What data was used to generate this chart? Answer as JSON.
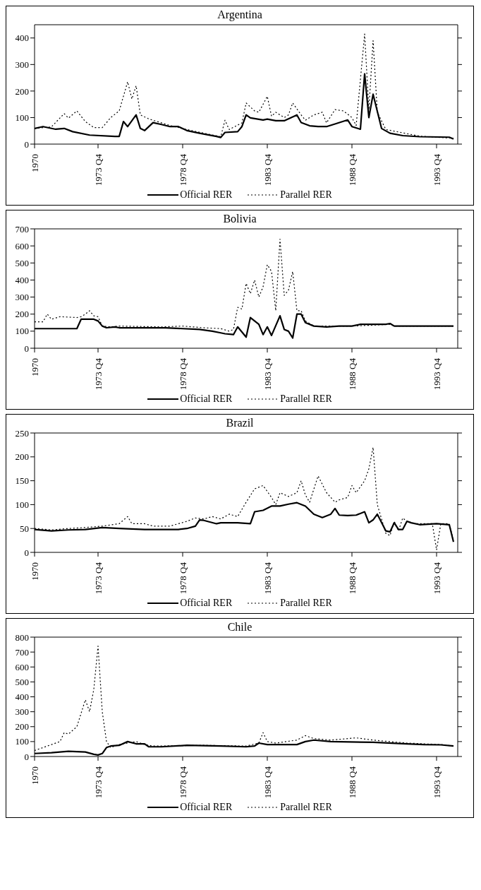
{
  "chart_data": [
    {
      "type": "line",
      "title": "Argentina",
      "xlim": [
        "1970-01",
        "1995-01"
      ],
      "xticks": [
        {
          "value": "1970-01",
          "label": "1970"
        },
        {
          "value": "1973-10",
          "label": "1973 Q4"
        },
        {
          "value": "1978-10",
          "label": "1978 Q4"
        },
        {
          "value": "1983-10",
          "label": "1983 Q4"
        },
        {
          "value": "1988-10",
          "label": "1988 Q4"
        },
        {
          "value": "1993-10",
          "label": "1993 Q4"
        }
      ],
      "ylim": [
        0,
        450
      ],
      "yticks": [
        0,
        100,
        200,
        300,
        400
      ],
      "legend": "bottom",
      "series": [
        {
          "name": "Official RER",
          "color": "#000000",
          "line_style": "solid",
          "x": [
            "1970-01",
            "1970-07",
            "1971-04",
            "1971-10",
            "1972-04",
            "1973-04",
            "1974-10",
            "1975-01",
            "1975-04",
            "1975-07",
            "1976-01",
            "1976-04",
            "1976-07",
            "1977-01",
            "1977-07",
            "1978-01",
            "1978-07",
            "1979-01",
            "1979-10",
            "1980-10",
            "1981-01",
            "1981-04",
            "1982-01",
            "1982-04",
            "1982-07",
            "1982-10",
            "1983-07",
            "1983-10",
            "1984-04",
            "1984-10",
            "1985-07",
            "1985-10",
            "1986-04",
            "1986-10",
            "1987-04",
            "1987-10",
            "1988-07",
            "1988-10",
            "1989-04",
            "1989-07",
            "1989-10",
            "1990-01",
            "1990-07",
            "1991-01",
            "1991-10",
            "1992-10",
            "1994-07",
            "1994-10"
          ],
          "values": [
            59,
            66,
            56,
            59,
            47,
            34,
            29,
            29,
            85,
            66,
            110,
            59,
            51,
            81,
            74,
            66,
            66,
            51,
            41,
            29,
            25,
            44,
            47,
            66,
            110,
            99,
            91,
            94,
            88,
            88,
            110,
            81,
            69,
            66,
            66,
            76,
            91,
            66,
            56,
            265,
            100,
            188,
            59,
            41,
            32,
            28,
            26,
            19
          ]
        },
        {
          "name": "Parallel RER",
          "color": "#000000",
          "line_style": "dotted",
          "x": [
            "1970-01",
            "1971-01",
            "1971-10",
            "1972-01",
            "1972-07",
            "1973-01",
            "1973-07",
            "1974-01",
            "1974-07",
            "1975-01",
            "1975-07",
            "1975-10",
            "1976-01",
            "1976-04",
            "1976-10",
            "1978-01",
            "1979-01",
            "1980-01",
            "1981-01",
            "1981-04",
            "1981-07",
            "1982-04",
            "1982-07",
            "1983-01",
            "1983-04",
            "1983-10",
            "1984-01",
            "1984-04",
            "1984-10",
            "1985-01",
            "1985-04",
            "1985-10",
            "1986-01",
            "1986-07",
            "1987-01",
            "1987-04",
            "1987-10",
            "1988-04",
            "1988-10",
            "1989-01",
            "1989-07",
            "1989-10",
            "1990-01",
            "1990-04",
            "1990-10",
            "1992-10",
            "1994-10"
          ],
          "values": [
            59,
            65,
            115,
            98,
            125,
            85,
            62,
            62,
            100,
            125,
            235,
            170,
            220,
            110,
            95,
            70,
            55,
            41,
            28,
            90,
            55,
            80,
            155,
            125,
            120,
            180,
            105,
            120,
            100,
            110,
            155,
            110,
            90,
            110,
            120,
            80,
            130,
            125,
            100,
            70,
            415,
            130,
            390,
            120,
            55,
            30,
            22
          ]
        }
      ]
    },
    {
      "type": "line",
      "title": "Bolivia",
      "xlim": [
        "1970-01",
        "1995-01"
      ],
      "xticks": [
        {
          "value": "1970-01",
          "label": "1970"
        },
        {
          "value": "1973-10",
          "label": "1973 Q4"
        },
        {
          "value": "1978-10",
          "label": "1978 Q4"
        },
        {
          "value": "1983-10",
          "label": "1983 Q4"
        },
        {
          "value": "1988-10",
          "label": "1988 Q4"
        },
        {
          "value": "1993-10",
          "label": "1993 Q4"
        }
      ],
      "ylim": [
        0,
        700
      ],
      "yticks": [
        0,
        100,
        200,
        300,
        400,
        500,
        600,
        700
      ],
      "legend": "bottom",
      "series": [
        {
          "name": "Official RER",
          "color": "#000000",
          "line_style": "solid",
          "x": [
            "1970-01",
            "1972-07",
            "1972-10",
            "1973-07",
            "1973-10",
            "1974-01",
            "1974-04",
            "1974-10",
            "1975-01",
            "1977-10",
            "1979-10",
            "1980-07",
            "1981-01",
            "1981-04",
            "1981-10",
            "1982-01",
            "1982-07",
            "1982-10",
            "1983-04",
            "1983-07",
            "1983-10",
            "1984-01",
            "1984-07",
            "1984-10",
            "1985-01",
            "1985-04",
            "1985-07",
            "1985-10",
            "1986-01",
            "1986-07",
            "1987-04",
            "1988-01",
            "1988-10",
            "1989-04",
            "1990-10",
            "1991-01",
            "1991-04",
            "1993-01",
            "1994-10"
          ],
          "values": [
            115,
            115,
            170,
            170,
            160,
            130,
            120,
            125,
            120,
            120,
            110,
            100,
            90,
            85,
            80,
            125,
            65,
            180,
            140,
            80,
            125,
            75,
            190,
            110,
            100,
            60,
            200,
            200,
            150,
            130,
            125,
            130,
            130,
            140,
            140,
            145,
            130,
            130,
            130
          ]
        },
        {
          "name": "Parallel RER",
          "color": "#000000",
          "line_style": "dotted",
          "x": [
            "1970-01",
            "1970-07",
            "1970-10",
            "1971-01",
            "1971-07",
            "1972-07",
            "1972-10",
            "1973-01",
            "1973-04",
            "1973-07",
            "1973-10",
            "1974-01",
            "1974-07",
            "1975-01",
            "1977-07",
            "1978-10",
            "1980-01",
            "1981-01",
            "1981-07",
            "1981-10",
            "1982-01",
            "1982-04",
            "1982-07",
            "1982-10",
            "1983-01",
            "1983-04",
            "1983-07",
            "1983-10",
            "1984-01",
            "1984-04",
            "1984-07",
            "1984-10",
            "1985-01",
            "1985-04",
            "1985-07",
            "1985-10",
            "1986-01",
            "1986-07",
            "1988-10",
            "1991-01",
            "1991-04",
            "1994-10"
          ],
          "values": [
            155,
            155,
            200,
            170,
            185,
            180,
            185,
            200,
            220,
            190,
            185,
            130,
            125,
            130,
            125,
            130,
            120,
            115,
            100,
            110,
            240,
            230,
            380,
            320,
            400,
            300,
            360,
            490,
            450,
            220,
            640,
            310,
            340,
            450,
            220,
            220,
            160,
            130,
            130,
            140,
            130,
            130
          ]
        }
      ]
    },
    {
      "type": "line",
      "title": "Brazil",
      "xlim": [
        "1970-01",
        "1995-01"
      ],
      "xticks": [
        {
          "value": "1970-01",
          "label": "1970"
        },
        {
          "value": "1973-10",
          "label": "1973 Q4"
        },
        {
          "value": "1978-10",
          "label": "1978 Q4"
        },
        {
          "value": "1983-10",
          "label": "1983 Q4"
        },
        {
          "value": "1988-10",
          "label": "1988 Q4"
        },
        {
          "value": "1993-10",
          "label": "1993 Q4"
        }
      ],
      "ylim": [
        0,
        250
      ],
      "yticks": [
        0,
        50,
        100,
        150,
        200,
        250
      ],
      "legend": "bottom",
      "series": [
        {
          "name": "Official RER",
          "color": "#000000",
          "line_style": "solid",
          "x": [
            "1970-01",
            "1971-01",
            "1972-01",
            "1973-01",
            "1974-01",
            "1975-01",
            "1976-07",
            "1978-07",
            "1979-01",
            "1979-07",
            "1979-10",
            "1980-01",
            "1980-10",
            "1981-01",
            "1982-01",
            "1982-10",
            "1983-01",
            "1983-07",
            "1984-01",
            "1984-07",
            "1985-01",
            "1985-07",
            "1986-01",
            "1986-07",
            "1987-01",
            "1987-07",
            "1987-10",
            "1988-01",
            "1988-07",
            "1989-01",
            "1989-07",
            "1989-10",
            "1990-01",
            "1990-04",
            "1990-10",
            "1991-01",
            "1991-04",
            "1991-07",
            "1991-10",
            "1992-01",
            "1992-04",
            "1992-10",
            "1993-10",
            "1994-07",
            "1994-10"
          ],
          "values": [
            48,
            45,
            47,
            48,
            52,
            50,
            48,
            48,
            50,
            55,
            68,
            67,
            60,
            62,
            62,
            60,
            85,
            88,
            97,
            97,
            101,
            104,
            97,
            80,
            73,
            80,
            92,
            78,
            77,
            78,
            85,
            62,
            68,
            80,
            45,
            43,
            62,
            48,
            48,
            65,
            62,
            58,
            60,
            58,
            22
          ]
        },
        {
          "name": "Parallel RER",
          "color": "#000000",
          "line_style": "dotted",
          "x": [
            "1970-01",
            "1971-01",
            "1972-01",
            "1973-01",
            "1974-01",
            "1975-01",
            "1975-07",
            "1975-10",
            "1976-07",
            "1977-01",
            "1978-01",
            "1978-07",
            "1979-01",
            "1979-07",
            "1980-01",
            "1980-07",
            "1981-01",
            "1981-07",
            "1982-01",
            "1982-07",
            "1983-01",
            "1983-07",
            "1984-01",
            "1984-04",
            "1984-07",
            "1985-01",
            "1985-07",
            "1985-10",
            "1986-01",
            "1986-04",
            "1986-10",
            "1987-04",
            "1987-10",
            "1988-01",
            "1988-07",
            "1988-10",
            "1989-01",
            "1989-07",
            "1989-10",
            "1990-01",
            "1990-04",
            "1990-10",
            "1991-01",
            "1991-04",
            "1991-07",
            "1991-10",
            "1992-01",
            "1992-07",
            "1993-07",
            "1993-10",
            "1994-01",
            "1994-07",
            "1994-10"
          ],
          "values": [
            50,
            47,
            50,
            52,
            55,
            60,
            75,
            60,
            60,
            55,
            55,
            60,
            65,
            72,
            70,
            75,
            70,
            80,
            75,
            105,
            133,
            140,
            115,
            100,
            125,
            117,
            125,
            150,
            120,
            105,
            160,
            125,
            105,
            110,
            115,
            140,
            125,
            150,
            175,
            220,
            100,
            40,
            35,
            65,
            45,
            72,
            65,
            60,
            60,
            5,
            60,
            60,
            25
          ]
        }
      ]
    },
    {
      "type": "line",
      "title": "Chile",
      "xlim": [
        "1970-01",
        "1995-01"
      ],
      "xticks": [
        {
          "value": "1970-01",
          "label": "1970"
        },
        {
          "value": "1973-10",
          "label": "1973 Q4"
        },
        {
          "value": "1978-10",
          "label": "1978 Q4"
        },
        {
          "value": "1983-10",
          "label": "1983 Q4"
        },
        {
          "value": "1988-10",
          "label": "1988 Q4"
        },
        {
          "value": "1993-10",
          "label": "1993 Q4"
        }
      ],
      "ylim": [
        0,
        800
      ],
      "yticks": [
        0,
        100,
        200,
        300,
        400,
        500,
        600,
        700,
        800
      ],
      "legend": "bottom",
      "series": [
        {
          "name": "Official RER",
          "color": "#000000",
          "line_style": "solid",
          "x": [
            "1970-01",
            "1971-01",
            "1972-01",
            "1973-01",
            "1973-07",
            "1973-10",
            "1974-01",
            "1974-04",
            "1974-07",
            "1975-01",
            "1975-07",
            "1976-01",
            "1976-07",
            "1976-10",
            "1977-07",
            "1979-01",
            "1981-01",
            "1982-07",
            "1983-01",
            "1983-04",
            "1983-10",
            "1985-07",
            "1986-01",
            "1986-07",
            "1987-07",
            "1990-01",
            "1992-01",
            "1993-01",
            "1994-01",
            "1994-10"
          ],
          "values": [
            20,
            25,
            35,
            30,
            15,
            10,
            20,
            60,
            70,
            75,
            100,
            85,
            85,
            65,
            65,
            75,
            70,
            65,
            70,
            90,
            80,
            80,
            100,
            110,
            100,
            95,
            85,
            80,
            78,
            70
          ]
        },
        {
          "name": "Parallel RER",
          "color": "#000000",
          "line_style": "dotted",
          "x": [
            "1970-01",
            "1970-07",
            "1971-01",
            "1971-07",
            "1971-10",
            "1972-01",
            "1972-07",
            "1973-01",
            "1973-04",
            "1973-07",
            "1973-10",
            "1974-01",
            "1974-04",
            "1974-07",
            "1975-01",
            "1975-07",
            "1976-01",
            "1976-07",
            "1977-01",
            "1980-01",
            "1982-07",
            "1983-04",
            "1983-07",
            "1983-10",
            "1984-04",
            "1985-07",
            "1986-01",
            "1986-07",
            "1987-07",
            "1989-01",
            "1990-01",
            "1992-01",
            "1994-01",
            "1994-10"
          ],
          "values": [
            40,
            60,
            80,
            100,
            160,
            150,
            200,
            380,
            300,
            450,
            740,
            300,
            100,
            60,
            80,
            90,
            100,
            80,
            70,
            75,
            70,
            90,
            160,
            100,
            90,
            110,
            140,
            120,
            110,
            125,
            110,
            90,
            80,
            70
          ]
        }
      ]
    }
  ]
}
